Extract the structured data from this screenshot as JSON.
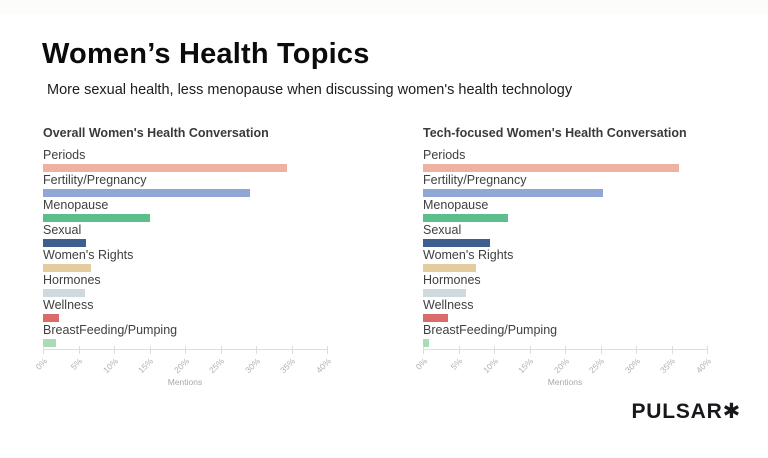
{
  "page": {
    "title": "Women’s Health Topics",
    "subtitle": "More sexual health, less menopause when discussing women's health technology",
    "logo": "PULSAR✱"
  },
  "palette": [
    "#efb2a2",
    "#90a7d5",
    "#5cbe8b",
    "#3d5f8f",
    "#e4cc9c",
    "#cfdadf",
    "#db6b6b",
    "#a9dcb5"
  ],
  "chart_data": [
    {
      "type": "bar",
      "orientation": "horizontal",
      "title": "Overall Women's Health Conversation",
      "categories": [
        "Periods",
        "Fertility/Pregnancy",
        "Menopause",
        "Sexual",
        "Women's Rights",
        "Hormones",
        "Wellness",
        "BreastFeeding/Pumping"
      ],
      "values": [
        34.3,
        29.2,
        15.1,
        6.1,
        6.7,
        5.9,
        2.2,
        1.9
      ],
      "xlabel": "Mentions",
      "xlim": [
        0,
        40
      ],
      "xticks": [
        "0%",
        "5%",
        "10%",
        "15%",
        "20%",
        "25%",
        "30%",
        "35%",
        "40%"
      ],
      "grid": false,
      "legend": "none"
    },
    {
      "type": "bar",
      "orientation": "horizontal",
      "title": "Tech-focused Women's Health Conversation",
      "categories": [
        "Periods",
        "Fertility/Pregnancy",
        "Menopause",
        "Sexual",
        "Women's Rights",
        "Hormones",
        "Wellness",
        "BreastFeeding/Pumping"
      ],
      "values": [
        36.1,
        25.4,
        12.0,
        9.5,
        7.5,
        6.1,
        3.5,
        0.9
      ],
      "xlabel": "Mentions",
      "xlim": [
        0,
        40
      ],
      "xticks": [
        "0%",
        "5%",
        "10%",
        "15%",
        "20%",
        "25%",
        "30%",
        "35%",
        "40%"
      ],
      "grid": false,
      "legend": "none"
    }
  ]
}
